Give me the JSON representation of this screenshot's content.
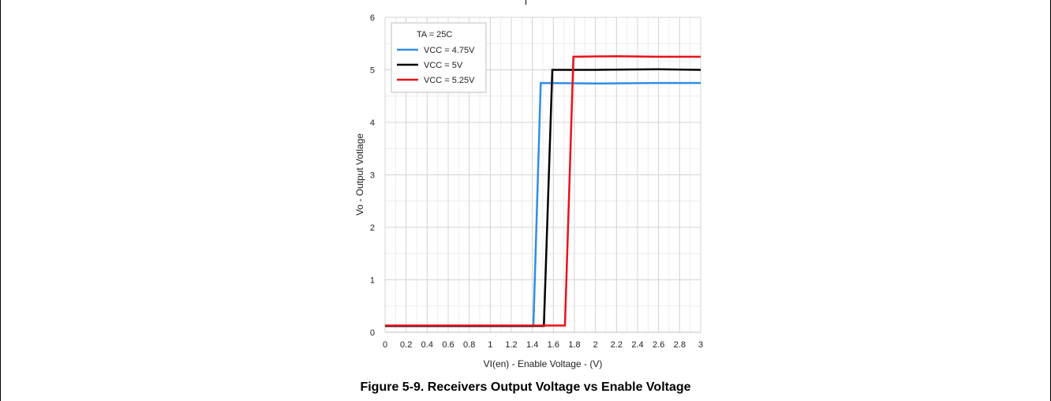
{
  "caption": "Figure 5-9. Receivers Output Voltage vs Enable Voltage",
  "chart_data": {
    "type": "line",
    "xlabel": "VI(en)  - Enable Voltage - (V)",
    "ylabel": "Vo - Output Votlage",
    "xlim": [
      0,
      3
    ],
    "ylim": [
      0,
      6
    ],
    "x_ticks": [
      "0",
      "0.2",
      "0.4",
      "0.6",
      "0.8",
      "1",
      "1.2",
      "1.4",
      "1.6",
      "1.8",
      "2",
      "2.2",
      "2.4",
      "2.6",
      "2.8",
      "3"
    ],
    "y_ticks": [
      "0",
      "1",
      "2",
      "3",
      "4",
      "5",
      "6"
    ],
    "grid": true,
    "legend_placement": "top-left",
    "legend_title": "TA = 25C",
    "series": [
      {
        "name": "VCC = 4.75V",
        "color": "#2f8ee5",
        "points": [
          [
            0,
            0.12
          ],
          [
            1.41,
            0.12
          ],
          [
            1.48,
            4.75
          ],
          [
            2.0,
            4.74
          ],
          [
            2.6,
            4.75
          ],
          [
            3.0,
            4.75
          ]
        ]
      },
      {
        "name": "VCC = 5V",
        "color": "#000000",
        "points": [
          [
            0,
            0.12
          ],
          [
            1.51,
            0.12
          ],
          [
            1.59,
            5.0
          ],
          [
            2.0,
            5.0
          ],
          [
            2.6,
            5.01
          ],
          [
            3.0,
            5.0
          ]
        ]
      },
      {
        "name": "VCC  = 5.25V",
        "color": "#e8121b",
        "points": [
          [
            0,
            0.13
          ],
          [
            1.71,
            0.13
          ],
          [
            1.79,
            5.25
          ],
          [
            2.2,
            5.26
          ],
          [
            2.6,
            5.25
          ],
          [
            3.0,
            5.25
          ]
        ]
      }
    ]
  }
}
